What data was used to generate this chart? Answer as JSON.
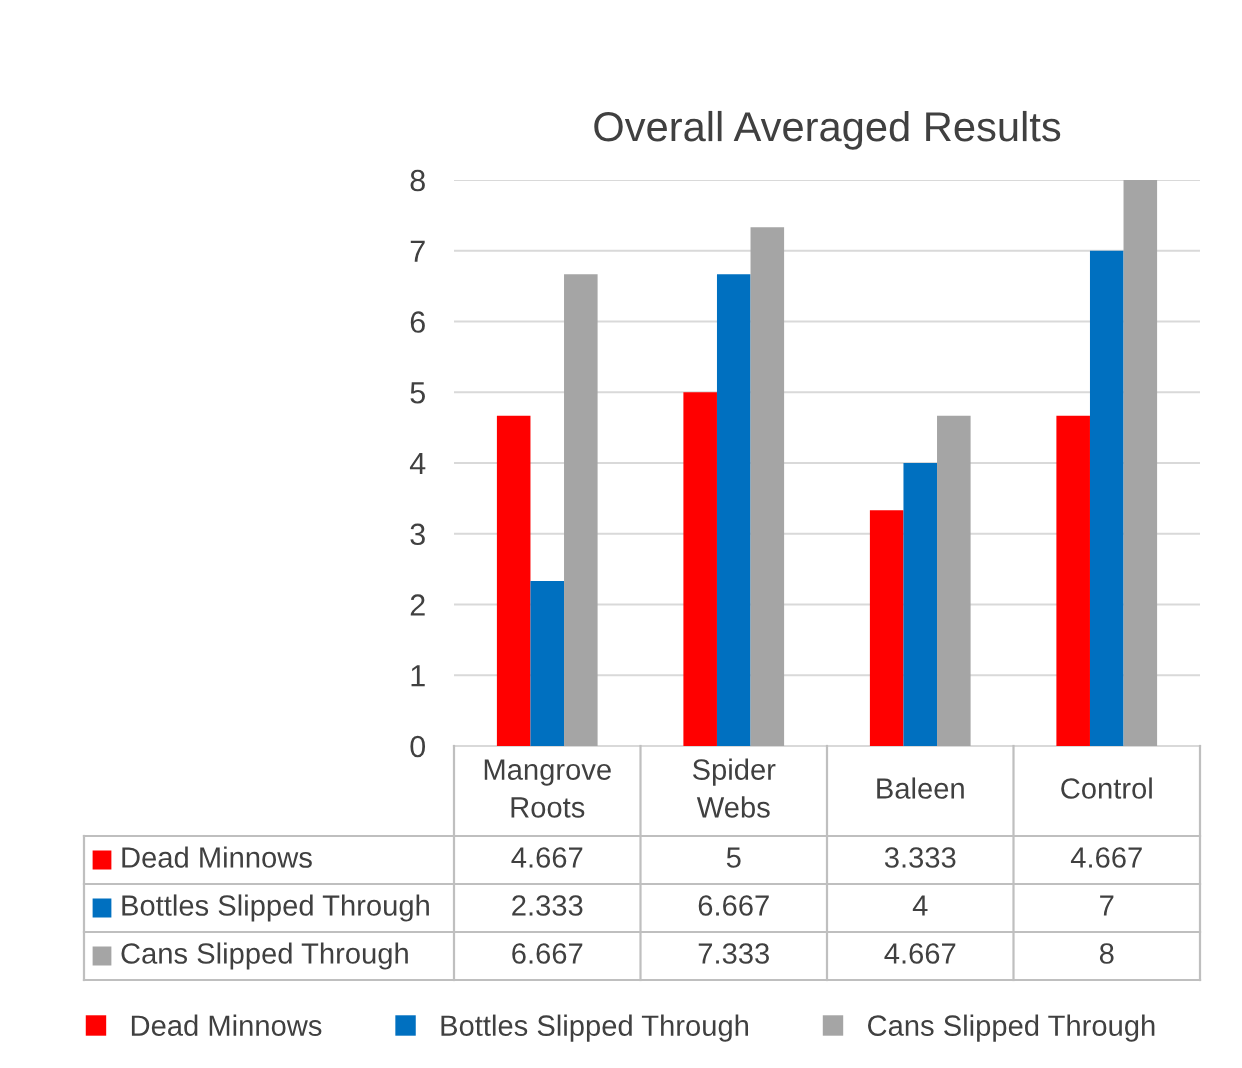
{
  "chart_data": {
    "type": "bar",
    "title": "Overall Averaged Results",
    "categories": [
      "Mangrove Roots",
      "Spider Webs",
      "Baleen",
      "Control"
    ],
    "series": [
      {
        "name": "Dead Minnows",
        "color": "#ff0000",
        "values": [
          4.667,
          5,
          3.333,
          4.667
        ]
      },
      {
        "name": "Bottles Slipped Through",
        "color": "#0070c0",
        "values": [
          2.333,
          6.667,
          4,
          7
        ]
      },
      {
        "name": "Cans Slipped Through",
        "color": "#a5a5a5",
        "values": [
          6.667,
          7.333,
          4.667,
          8
        ]
      }
    ],
    "ylim": [
      0,
      8
    ],
    "yticks": [
      0,
      1,
      2,
      3,
      4,
      5,
      6,
      7,
      8
    ],
    "grid": "y",
    "legend": "bottom",
    "data_labels": true
  }
}
